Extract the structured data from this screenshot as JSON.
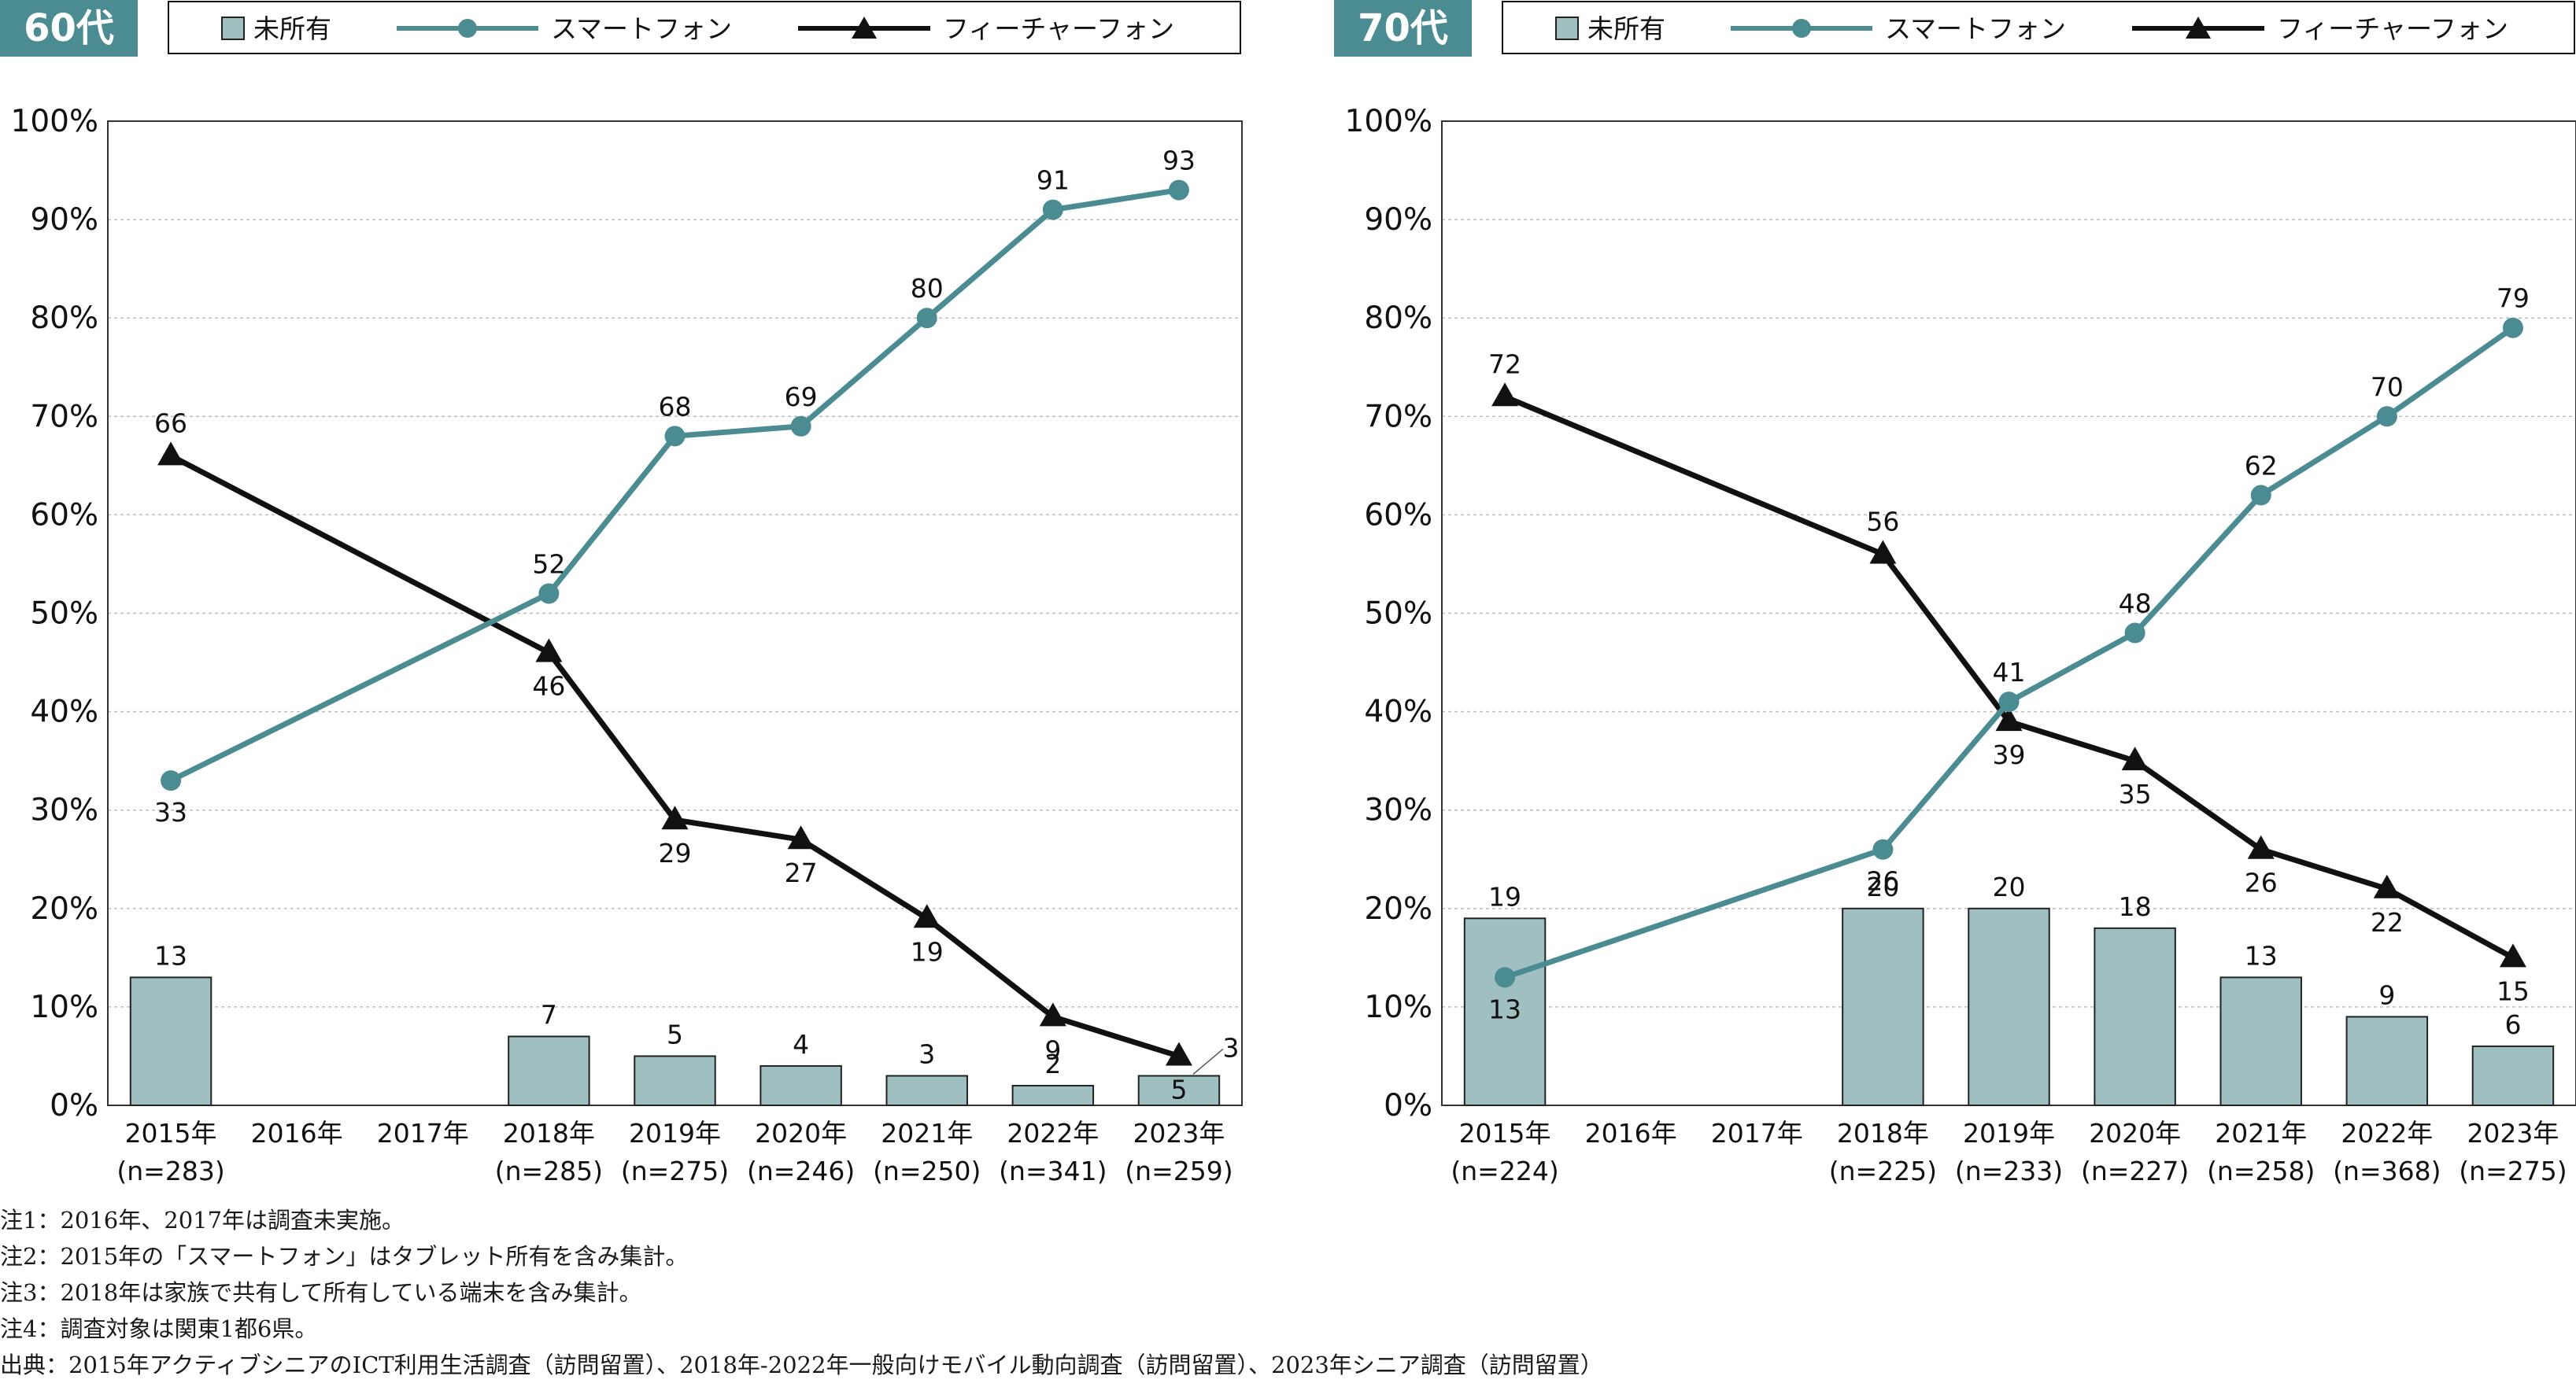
{
  "legend": {
    "none": "未所有",
    "smartphone": "スマートフォン",
    "feature": "フィーチャーフォン"
  },
  "colors": {
    "teal": "#4b8b92",
    "bar_fill": "#9fbfc1",
    "bar_stroke": "#222222",
    "black": "#111111",
    "panel_title_bg": "#4b8b92"
  },
  "chart_data": [
    {
      "type": "bar+line",
      "title": "60代",
      "categories": [
        "2015年",
        "2016年",
        "2017年",
        "2018年",
        "2019年",
        "2020年",
        "2021年",
        "2022年",
        "2023年"
      ],
      "sample_sizes": [
        "(n=283)",
        "",
        "",
        "(n=285)",
        "(n=275)",
        "(n=246)",
        "(n=250)",
        "(n=341)",
        "(n=259)"
      ],
      "ylim": [
        0,
        100
      ],
      "y_ticks": [
        "0%",
        "10%",
        "20%",
        "30%",
        "40%",
        "50%",
        "60%",
        "70%",
        "80%",
        "90%",
        "100%"
      ],
      "grid": true,
      "series": [
        {
          "name": "未所有",
          "kind": "bar",
          "values": [
            13,
            null,
            null,
            7,
            5,
            4,
            3,
            2,
            3
          ]
        },
        {
          "name": "スマートフォン",
          "kind": "line",
          "marker": "circle",
          "values": [
            33,
            null,
            null,
            52,
            68,
            69,
            80,
            91,
            93
          ]
        },
        {
          "name": "フィーチャーフォン",
          "kind": "line",
          "marker": "triangle",
          "values": [
            66,
            null,
            null,
            46,
            29,
            27,
            19,
            9,
            5
          ]
        }
      ]
    },
    {
      "type": "bar+line",
      "title": "70代",
      "categories": [
        "2015年",
        "2016年",
        "2017年",
        "2018年",
        "2019年",
        "2020年",
        "2021年",
        "2022年",
        "2023年"
      ],
      "sample_sizes": [
        "(n=224)",
        "",
        "",
        "(n=225)",
        "(n=233)",
        "(n=227)",
        "(n=258)",
        "(n=368)",
        "(n=275)"
      ],
      "ylim": [
        0,
        100
      ],
      "y_ticks": [
        "0%",
        "10%",
        "20%",
        "30%",
        "40%",
        "50%",
        "60%",
        "70%",
        "80%",
        "90%",
        "100%"
      ],
      "grid": true,
      "series": [
        {
          "name": "未所有",
          "kind": "bar",
          "values": [
            19,
            null,
            null,
            20,
            20,
            18,
            13,
            9,
            6
          ]
        },
        {
          "name": "スマートフォン",
          "kind": "line",
          "marker": "circle",
          "values": [
            13,
            null,
            null,
            26,
            41,
            48,
            62,
            70,
            79
          ]
        },
        {
          "name": "フィーチャーフォン",
          "kind": "line",
          "marker": "triangle",
          "values": [
            72,
            null,
            null,
            56,
            39,
            35,
            26,
            22,
            15
          ]
        }
      ]
    }
  ],
  "notes": [
    "注1：2016年、2017年は調査未実施。",
    "注2：2015年の「スマートフォン」はタブレット所有を含み集計。",
    "注3：2018年は家族で共有して所有している端末を含み集計。",
    "注4：調査対象は関東1都6県。",
    "出典：2015年アクティブシニアのICT利用生活調査（訪問留置）、2018年-2022年一般向けモバイル動向調査（訪問留置）、2023年シニア調査（訪問留置）"
  ]
}
